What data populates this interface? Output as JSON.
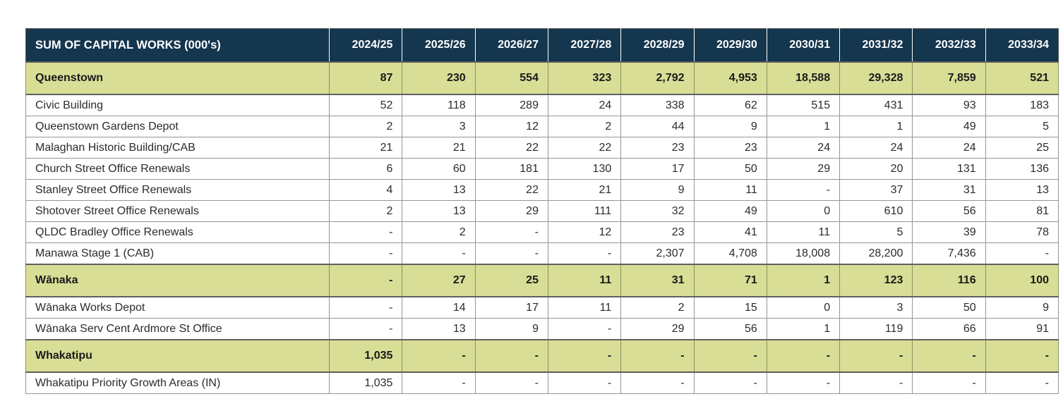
{
  "title": "SUM OF CAPITAL WORKS (000's)",
  "colors": {
    "header_bg": "#14364e",
    "header_text": "#ffffff",
    "section_bg": "#d8de96",
    "body_bg": "#ffffff",
    "body_text": "#2b2b2b",
    "grid_line": "#959595"
  },
  "table": {
    "header": {
      "label": "SUM OF CAPITAL WORKS (000's)",
      "years": [
        "2024/25",
        "2025/26",
        "2026/27",
        "2027/28",
        "2028/29",
        "2029/30",
        "2030/31",
        "2031/32",
        "2032/33",
        "2033/34"
      ]
    },
    "rows": [
      {
        "label": "Queenstown",
        "type": "section",
        "values": [
          "87",
          "230",
          "554",
          "323",
          "2,792",
          "4,953",
          "18,588",
          "29,328",
          "7,859",
          "521"
        ]
      },
      {
        "label": "Civic Building",
        "type": "detail",
        "values": [
          "52",
          "118",
          "289",
          "24",
          "338",
          "62",
          "515",
          "431",
          "93",
          "183"
        ]
      },
      {
        "label": "Queenstown Gardens Depot",
        "type": "detail",
        "values": [
          "2",
          "3",
          "12",
          "2",
          "44",
          "9",
          "1",
          "1",
          "49",
          "5"
        ]
      },
      {
        "label": "Malaghan Historic Building/CAB",
        "type": "detail",
        "values": [
          "21",
          "21",
          "22",
          "22",
          "23",
          "23",
          "24",
          "24",
          "24",
          "25"
        ]
      },
      {
        "label": "Church Street Office Renewals",
        "type": "detail",
        "values": [
          "6",
          "60",
          "181",
          "130",
          "17",
          "50",
          "29",
          "20",
          "131",
          "136"
        ]
      },
      {
        "label": "Stanley Street Office Renewals",
        "type": "detail",
        "values": [
          "4",
          "13",
          "22",
          "21",
          "9",
          "11",
          "-",
          "37",
          "31",
          "13"
        ]
      },
      {
        "label": "Shotover Street Office Renewals",
        "type": "detail",
        "values": [
          "2",
          "13",
          "29",
          "111",
          "32",
          "49",
          "0",
          "610",
          "56",
          "81"
        ]
      },
      {
        "label": "QLDC Bradley Office Renewals",
        "type": "detail",
        "values": [
          "-",
          "2",
          "-",
          "12",
          "23",
          "41",
          "11",
          "5",
          "39",
          "78"
        ]
      },
      {
        "label": "Manawa Stage 1 (CAB)",
        "type": "detail",
        "values": [
          "-",
          "-",
          "-",
          "-",
          "2,307",
          "4,708",
          "18,008",
          "28,200",
          "7,436",
          "-"
        ]
      },
      {
        "label": "Wānaka",
        "type": "section",
        "values": [
          "-",
          "27",
          "25",
          "11",
          "31",
          "71",
          "1",
          "123",
          "116",
          "100"
        ]
      },
      {
        "label": "Wānaka Works Depot",
        "type": "detail",
        "values": [
          "-",
          "14",
          "17",
          "11",
          "2",
          "15",
          "0",
          "3",
          "50",
          "9"
        ]
      },
      {
        "label": "Wānaka Serv Cent Ardmore St Office",
        "type": "detail",
        "values": [
          "-",
          "13",
          "9",
          "-",
          "29",
          "56",
          "1",
          "119",
          "66",
          "91"
        ]
      },
      {
        "label": "Whakatipu",
        "type": "section",
        "values": [
          "1,035",
          "-",
          "-",
          "-",
          "-",
          "-",
          "-",
          "-",
          "-",
          "-"
        ]
      },
      {
        "label": "Whakatipu Priority Growth Areas (IN)",
        "type": "detail",
        "values": [
          "1,035",
          "-",
          "-",
          "-",
          "-",
          "-",
          "-",
          "-",
          "-",
          "-"
        ]
      }
    ]
  }
}
